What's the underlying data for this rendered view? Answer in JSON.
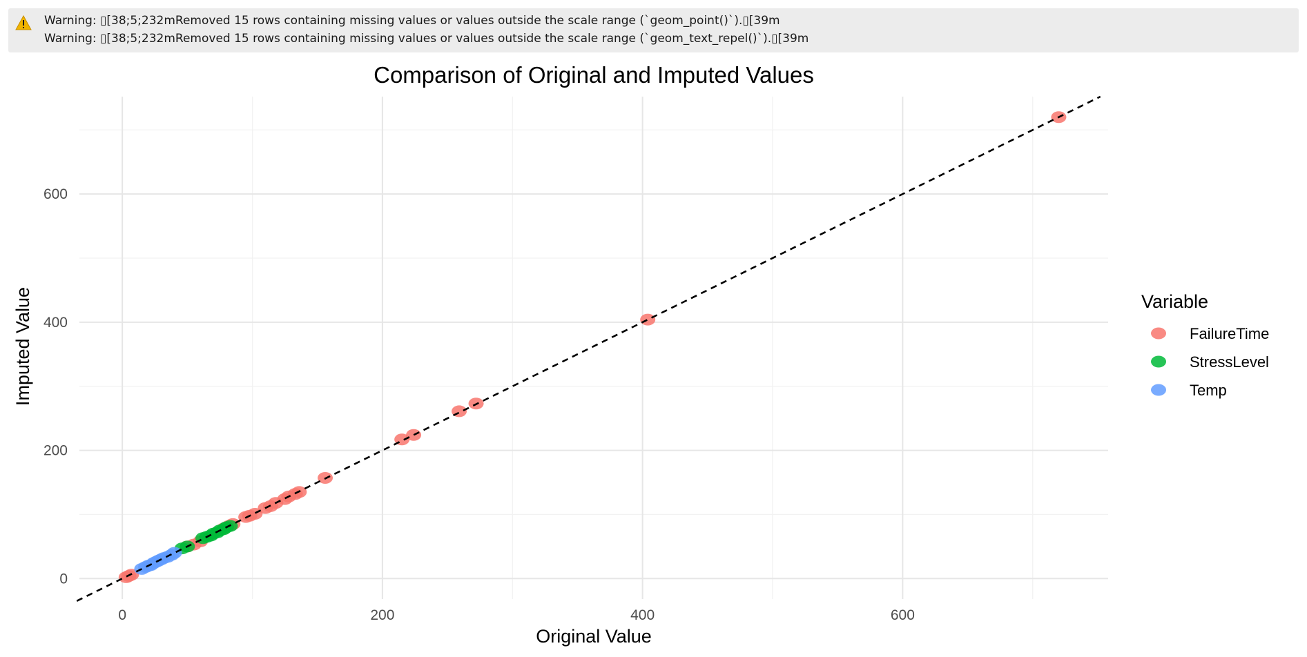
{
  "console": {
    "icon": "warning-triangle-icon",
    "icon_color": "#f0b400",
    "lines": [
      "Warning: ▯[38;5;232mRemoved 15 rows containing missing values or values outside the scale range (`geom_point()`).▯[39m",
      "Warning: ▯[38;5;232mRemoved 15 rows containing missing values or values outside the scale range (`geom_text_repel()`).▯[39m"
    ]
  },
  "chart_data": {
    "type": "scatter",
    "title": "Comparison of Original and Imputed Values",
    "xlabel": "Original Value",
    "ylabel": "Imputed Value",
    "xlim": [
      -33,
      758
    ],
    "ylim": [
      -32,
      752
    ],
    "x_ticks": [
      0,
      200,
      400,
      600
    ],
    "y_ticks": [
      0,
      200,
      400,
      600
    ],
    "grid": true,
    "reference_line": {
      "type": "identity",
      "style": "dashed",
      "color": "#000000"
    },
    "legend": {
      "title": "Variable",
      "position": "right"
    },
    "series": [
      {
        "name": "FailureTime",
        "color": "#f8766d",
        "points": [
          [
            3,
            2
          ],
          [
            5,
            4
          ],
          [
            7,
            6
          ],
          [
            50,
            50
          ],
          [
            55,
            53
          ],
          [
            60,
            58
          ],
          [
            78,
            78
          ],
          [
            82,
            82
          ],
          [
            85,
            85
          ],
          [
            95,
            96
          ],
          [
            98,
            98
          ],
          [
            102,
            101
          ],
          [
            110,
            110
          ],
          [
            114,
            113
          ],
          [
            118,
            118
          ],
          [
            125,
            124
          ],
          [
            128,
            128
          ],
          [
            133,
            132
          ],
          [
            136,
            135
          ],
          [
            156,
            157
          ],
          [
            215,
            217
          ],
          [
            224,
            224
          ],
          [
            259,
            261
          ],
          [
            272,
            273
          ],
          [
            404,
            404
          ],
          [
            720,
            720
          ]
        ]
      },
      {
        "name": "StressLevel",
        "color": "#00ba38",
        "points": [
          [
            46,
            47
          ],
          [
            50,
            50
          ],
          [
            62,
            63
          ],
          [
            65,
            65
          ],
          [
            68,
            67
          ],
          [
            70,
            70
          ],
          [
            73,
            72
          ],
          [
            75,
            75
          ],
          [
            78,
            77
          ],
          [
            80,
            80
          ],
          [
            83,
            82
          ]
        ]
      },
      {
        "name": "Temp",
        "color": "#619cff",
        "points": [
          [
            15,
            15
          ],
          [
            18,
            18
          ],
          [
            20,
            20
          ],
          [
            22,
            21
          ],
          [
            24,
            24
          ],
          [
            26,
            26
          ],
          [
            28,
            28
          ],
          [
            30,
            30
          ],
          [
            32,
            32
          ],
          [
            35,
            34
          ],
          [
            38,
            37
          ],
          [
            40,
            40
          ]
        ]
      }
    ]
  }
}
